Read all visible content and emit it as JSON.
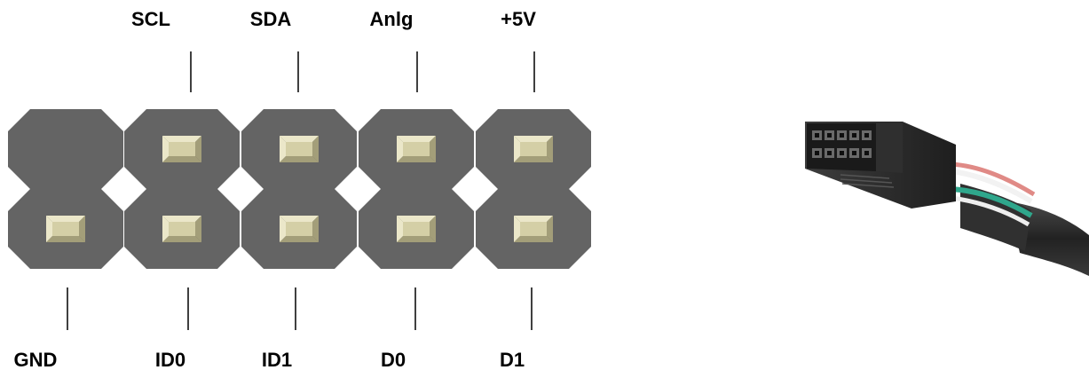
{
  "diagram": {
    "top_labels": [
      "SCL",
      "SDA",
      "Anlg",
      "+5V"
    ],
    "bottom_labels": [
      "GND",
      "ID0",
      "ID1",
      "D0",
      "D1"
    ],
    "top_row": [
      {
        "pad": false
      },
      {
        "pad": true,
        "label_index": 0
      },
      {
        "pad": true,
        "label_index": 1
      },
      {
        "pad": true,
        "label_index": 2
      },
      {
        "pad": true,
        "label_index": 3
      }
    ],
    "bottom_row": [
      {
        "pad": true,
        "label_index": 0
      },
      {
        "pad": true,
        "label_index": 1
      },
      {
        "pad": true,
        "label_index": 2
      },
      {
        "pad": true,
        "label_index": 3
      },
      {
        "pad": true,
        "label_index": 4
      }
    ],
    "colors": {
      "header_body": "#646464",
      "pad_face": "#d4cfa6",
      "pad_bevel_light": "#ebe7c9",
      "pad_bevel_dark": "#a39e79",
      "leader_line": "#000000",
      "connector_body": "#2b2b2b",
      "wire_red": "#e08a86",
      "wire_green": "#2fa78c",
      "wire_white": "#f2f2f2"
    }
  },
  "photo": {
    "subject": "10-pin-ribbon-connector",
    "icon": "connector-photo-icon"
  }
}
